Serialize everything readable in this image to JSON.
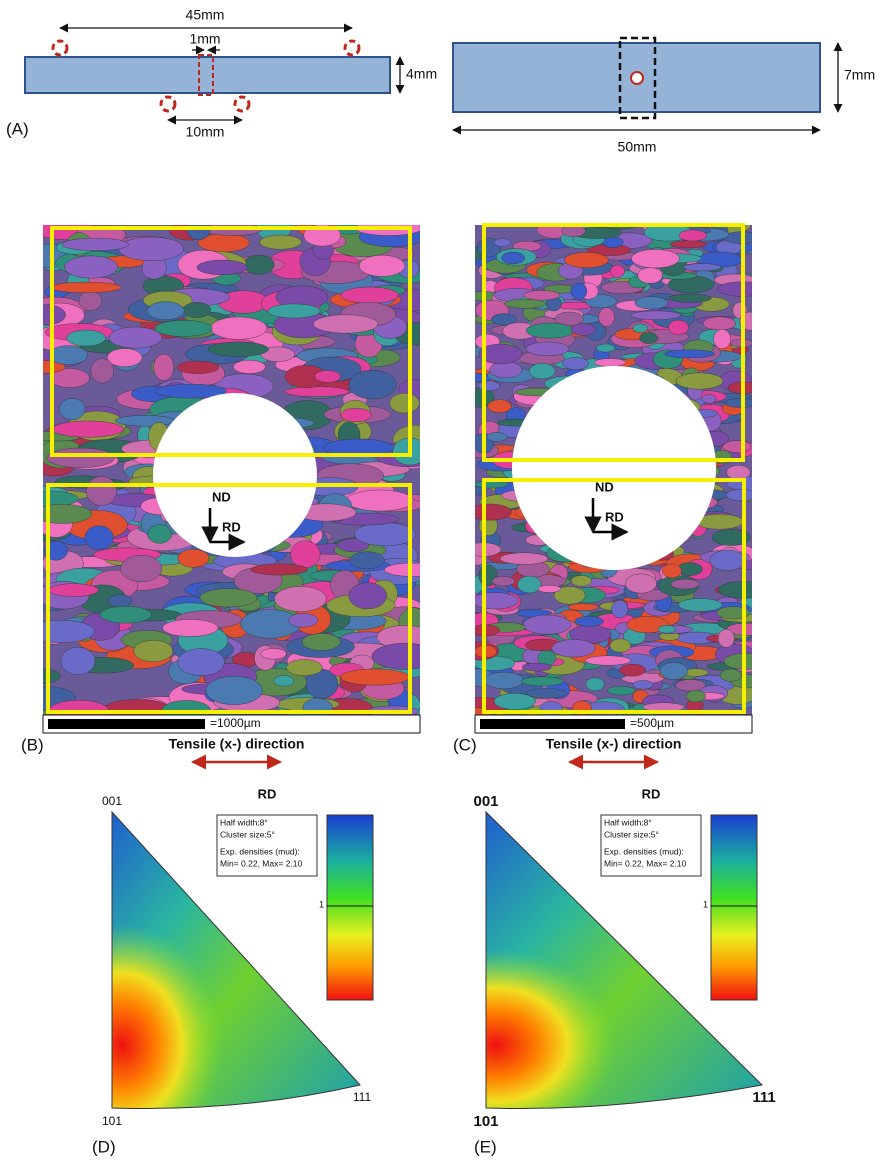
{
  "panel_a": {
    "label": "(A)",
    "left": {
      "length": "45mm",
      "slot": "1mm",
      "thickness": "4mm",
      "span": "10mm"
    },
    "right": {
      "height": "7mm",
      "length": "50mm"
    }
  },
  "maps": [
    {
      "label": "(B)",
      "scale": "=1000µm",
      "direction": "Tensile (x-) direction",
      "axes": {
        "nd": "ND",
        "rd": "RD"
      }
    },
    {
      "label": "(C)",
      "scale": "=500µm",
      "direction": "Tensile (x-) direction",
      "axes": {
        "nd": "ND",
        "rd": "RD"
      }
    }
  ],
  "pole_figures": [
    {
      "label": "(D)",
      "title": "RD",
      "corners": {
        "top": "001",
        "bottom": "101",
        "right": "111"
      },
      "legend": [
        "Half width:8°",
        "Cluster size:5°",
        "Exp. densities (mud):",
        "Min= 0.22, Max= 2.10"
      ],
      "colorbar_mark": "1"
    },
    {
      "label": "(E)",
      "title": "RD",
      "corners": {
        "top": "001",
        "bottom": "101",
        "right": "111"
      },
      "legend": [
        "Half width:8°",
        "Cluster size:5°",
        "Exp. densities (mud):",
        "Min= 0.22, Max= 2.10"
      ],
      "colorbar_mark": "1"
    }
  ]
}
